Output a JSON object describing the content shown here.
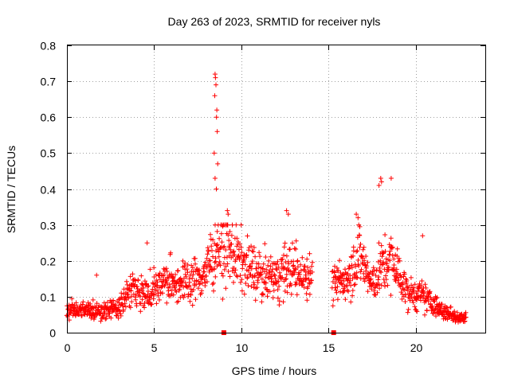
{
  "chart_data": {
    "type": "scatter",
    "title": "Day 263 of 2023, SRMTID for receiver nyls",
    "xlabel": "GPS time / hours",
    "ylabel": "SRMTID / TECUs",
    "xlim": [
      0,
      24
    ],
    "ylim": [
      0,
      0.8
    ],
    "xticks": [
      0,
      5,
      10,
      15,
      20
    ],
    "xtick_labels": [
      "0",
      "5",
      "10",
      "15",
      "20"
    ],
    "yticks": [
      0,
      0.1,
      0.2,
      0.3,
      0.4,
      0.5,
      0.6,
      0.7,
      0.8
    ],
    "ytick_labels": [
      "0",
      "0.1",
      "0.2",
      "0.3",
      "0.4",
      "0.5",
      "0.6",
      "0.7",
      "0.8"
    ],
    "grid": true,
    "marker": "plus",
    "series_color": "#ff0000",
    "envelope": {
      "description": "approximate median trend of the SRMTID samples versus GPS time",
      "x": [
        0.0,
        1.0,
        2.0,
        3.0,
        3.7,
        4.5,
        5.5,
        6.5,
        7.5,
        8.0,
        8.5,
        9.0,
        10.0,
        11.0,
        12.0,
        12.7,
        13.5,
        14.0,
        15.2,
        16.0,
        16.8,
        17.5,
        18.0,
        18.7,
        19.5,
        20.5,
        21.5,
        22.7
      ],
      "y": [
        0.06,
        0.065,
        0.06,
        0.07,
        0.13,
        0.11,
        0.14,
        0.14,
        0.15,
        0.17,
        0.24,
        0.24,
        0.2,
        0.16,
        0.15,
        0.18,
        0.16,
        0.17,
        0.13,
        0.15,
        0.22,
        0.13,
        0.18,
        0.2,
        0.11,
        0.1,
        0.06,
        0.04
      ]
    },
    "spike": {
      "description": "isolated high samples near 8.5 h",
      "x": [
        8.5,
        8.52,
        8.55,
        8.48,
        8.6,
        8.58,
        8.62,
        8.45,
        8.65,
        8.5,
        8.57
      ],
      "y": [
        0.72,
        0.71,
        0.69,
        0.66,
        0.62,
        0.6,
        0.56,
        0.5,
        0.47,
        0.43,
        0.4
      ]
    },
    "outliers": {
      "x": [
        12.6,
        12.7,
        18.0,
        18.05,
        18.6,
        17.9,
        16.6,
        16.7,
        20.4,
        9.2,
        9.25,
        1.7,
        4.6
      ],
      "y": [
        0.34,
        0.33,
        0.43,
        0.42,
        0.43,
        0.41,
        0.33,
        0.32,
        0.27,
        0.34,
        0.33,
        0.16,
        0.25
      ]
    },
    "data_gaps": {
      "description": "periods with no samples, marked by red squares on the x axis",
      "x": [
        9.0,
        15.3
      ]
    },
    "data_extent": [
      0.0,
      22.9
    ]
  }
}
